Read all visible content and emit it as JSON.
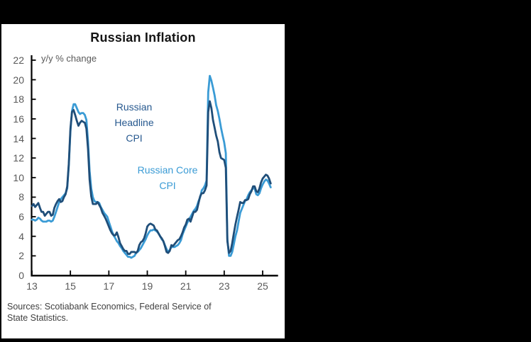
{
  "window": {
    "background_color": "#000000",
    "panel_color": "#ffffff"
  },
  "chart": {
    "title": "Russian Inflation",
    "axis_note": "y/y % change",
    "annotations": {
      "headline_label": [
        "Russian",
        "Headline",
        "CPI"
      ],
      "core_label": [
        "Russian Core",
        "CPI"
      ]
    },
    "sources": {
      "line1": "Sources: Scotiabank Economics, Federal Service of",
      "line2": "State Statistics."
    },
    "colors": {
      "headline_line": "#1F4E79",
      "core_line": "#3A9BD5",
      "headline_label": "#27598F",
      "core_label": "#3A9BD5",
      "axis": "#000000",
      "tick_label": "#595959",
      "source_text": "#404040"
    }
  },
  "chart_data": {
    "type": "line",
    "title": "Russian Inflation",
    "ylabel": "y/y % change",
    "x_unit": "year (monthly observations)",
    "x_start": 2013.0,
    "x_step": 0.0833333,
    "xlim": [
      13,
      25.8
    ],
    "ylim": [
      0,
      22
    ],
    "y_ticks": [
      0,
      2,
      4,
      6,
      8,
      10,
      12,
      14,
      16,
      18,
      20,
      22
    ],
    "x_ticks": [
      13,
      15,
      17,
      19,
      21,
      23,
      25
    ],
    "grid": false,
    "legend_position": "inline-annotations",
    "series": [
      {
        "name": "Russian Core CPI",
        "color": "#3A9BD5",
        "values": [
          5.7,
          5.7,
          5.6,
          5.7,
          5.9,
          5.8,
          5.6,
          5.5,
          5.5,
          5.5,
          5.6,
          5.6,
          5.5,
          5.6,
          6.0,
          6.5,
          7.0,
          7.5,
          7.8,
          8.0,
          8.2,
          8.4,
          8.9,
          11.2,
          14.7,
          16.8,
          17.5,
          17.5,
          17.1,
          16.7,
          16.5,
          16.6,
          16.6,
          16.4,
          15.9,
          13.7,
          10.7,
          8.9,
          8.0,
          7.6,
          7.5,
          7.5,
          7.4,
          7.0,
          6.7,
          6.4,
          6.2,
          6.0,
          5.5,
          5.0,
          4.5,
          4.1,
          3.8,
          3.5,
          3.3,
          3.0,
          2.8,
          2.5,
          2.3,
          2.1,
          1.9,
          1.9,
          1.8,
          1.9,
          2.0,
          2.3,
          2.4,
          2.6,
          2.8,
          3.1,
          3.4,
          3.7,
          4.1,
          4.4,
          4.6,
          4.6,
          4.7,
          4.6,
          4.5,
          4.3,
          4.0,
          3.7,
          3.5,
          3.1,
          2.7,
          2.4,
          2.6,
          2.9,
          2.9,
          2.9,
          3.0,
          3.1,
          3.3,
          3.6,
          4.2,
          4.6,
          5.0,
          5.4,
          5.7,
          6.0,
          6.3,
          6.6,
          6.8,
          7.1,
          7.6,
          8.0,
          8.7,
          8.9,
          9.2,
          9.7,
          18.7,
          20.4,
          19.9,
          19.2,
          18.4,
          17.4,
          16.8,
          16.0,
          15.1,
          14.3,
          13.6,
          12.5,
          3.7,
          2.0,
          2.0,
          2.4,
          3.2,
          4.0,
          4.6,
          5.5,
          6.4,
          6.8,
          7.2,
          7.6,
          7.8,
          8.2,
          8.5,
          8.7,
          8.9,
          8.9,
          8.3,
          8.2,
          8.4,
          8.9,
          9.3,
          9.6,
          9.8,
          9.7,
          9.4,
          9.0
        ]
      },
      {
        "name": "Russian Headline CPI",
        "color": "#1F4E79",
        "values": [
          7.1,
          7.3,
          7.0,
          7.2,
          7.4,
          6.9,
          6.5,
          6.5,
          6.1,
          6.3,
          6.5,
          6.5,
          6.1,
          6.2,
          6.9,
          7.3,
          7.6,
          7.8,
          7.5,
          7.6,
          8.0,
          8.3,
          9.1,
          11.4,
          15.0,
          16.7,
          16.9,
          16.4,
          15.8,
          15.3,
          15.6,
          15.8,
          15.7,
          15.6,
          15.0,
          12.9,
          9.8,
          8.1,
          7.3,
          7.3,
          7.3,
          7.5,
          7.2,
          6.9,
          6.4,
          6.1,
          5.8,
          5.4,
          5.0,
          4.6,
          4.3,
          4.1,
          4.1,
          4.4,
          3.9,
          3.3,
          3.0,
          2.7,
          2.5,
          2.5,
          2.2,
          2.2,
          2.4,
          2.4,
          2.4,
          2.3,
          2.5,
          3.1,
          3.4,
          3.5,
          3.8,
          4.3,
          5.0,
          5.2,
          5.3,
          5.2,
          5.1,
          4.7,
          4.6,
          4.3,
          4.0,
          3.8,
          3.5,
          3.0,
          2.4,
          2.3,
          2.5,
          3.1,
          3.0,
          3.2,
          3.4,
          3.6,
          3.7,
          4.0,
          4.4,
          4.9,
          5.2,
          5.7,
          5.8,
          5.5,
          6.0,
          6.5,
          6.5,
          6.7,
          7.4,
          8.1,
          8.4,
          8.4,
          8.7,
          9.2,
          16.7,
          17.8,
          17.1,
          15.9,
          15.1,
          14.3,
          13.7,
          12.6,
          12.0,
          11.9,
          11.8,
          11.0,
          3.5,
          2.3,
          2.5,
          3.3,
          4.3,
          5.2,
          6.0,
          6.7,
          7.5,
          7.4,
          7.4,
          7.7,
          7.7,
          7.8,
          8.3,
          8.6,
          9.1,
          9.1,
          8.6,
          8.5,
          8.9,
          9.5,
          9.9,
          10.1,
          10.3,
          10.2,
          9.9,
          9.4
        ]
      }
    ]
  }
}
